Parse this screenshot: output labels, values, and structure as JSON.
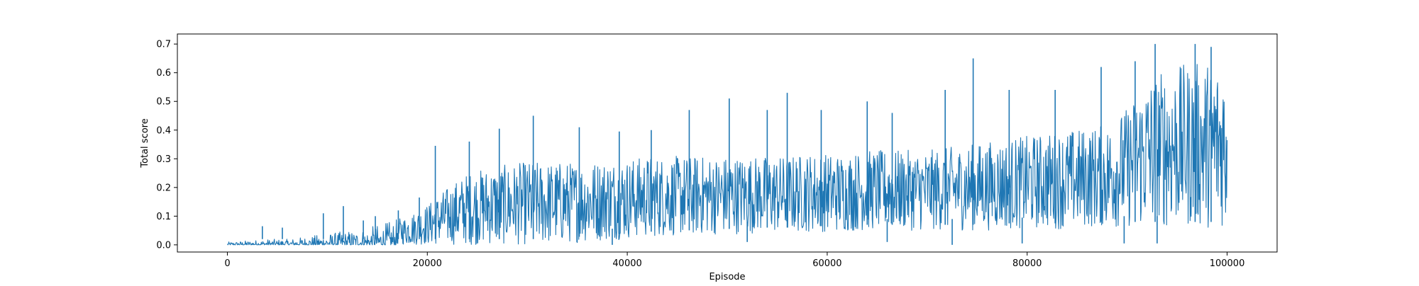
{
  "chart_data": {
    "type": "line",
    "title": "",
    "xlabel": "Episode",
    "ylabel": "Total score",
    "xlim": [
      -5000,
      105000
    ],
    "ylim": [
      -0.025,
      0.735
    ],
    "x_ticks": [
      0,
      20000,
      40000,
      60000,
      80000,
      100000
    ],
    "x_tick_labels": [
      "0",
      "20000",
      "40000",
      "60000",
      "80000",
      "100000"
    ],
    "y_ticks": [
      0.0,
      0.1,
      0.2,
      0.3,
      0.4,
      0.5,
      0.6,
      0.7
    ],
    "y_tick_labels": [
      "0.0",
      "0.1",
      "0.2",
      "0.3",
      "0.4",
      "0.5",
      "0.6",
      "0.7"
    ],
    "grid": false,
    "legend": "none",
    "series": [
      {
        "color": "#1f77b4",
        "episodes_total": 100000,
        "x": [
          0,
          2000,
          4000,
          6000,
          8000,
          10000,
          12000,
          14000,
          16000,
          18000,
          20000,
          22000,
          24000,
          26000,
          28000,
          30000,
          32000,
          34000,
          36000,
          38000,
          40000,
          42000,
          44000,
          46000,
          48000,
          50000,
          52000,
          54000,
          56000,
          58000,
          60000,
          62000,
          64000,
          66000,
          68000,
          70000,
          72000,
          74000,
          76000,
          78000,
          80000,
          82000,
          84000,
          86000,
          88000,
          90000,
          92000,
          94000,
          96000,
          98000,
          100000
        ],
        "upper_envelope": [
          0.01,
          0.015,
          0.02,
          0.02,
          0.03,
          0.04,
          0.05,
          0.06,
          0.08,
          0.1,
          0.14,
          0.2,
          0.25,
          0.27,
          0.28,
          0.29,
          0.29,
          0.29,
          0.29,
          0.3,
          0.3,
          0.31,
          0.31,
          0.31,
          0.31,
          0.31,
          0.31,
          0.31,
          0.31,
          0.32,
          0.32,
          0.32,
          0.33,
          0.33,
          0.33,
          0.33,
          0.34,
          0.35,
          0.36,
          0.37,
          0.38,
          0.39,
          0.4,
          0.41,
          0.42,
          0.48,
          0.58,
          0.62,
          0.63,
          0.64,
          0.64
        ],
        "lower_envelope": [
          0.0,
          0.0,
          0.0,
          0.0,
          0.0,
          0.0,
          0.0,
          0.0,
          0.0,
          0.0,
          0.0,
          0.0,
          0.0,
          0.0,
          0.0,
          0.0,
          0.0,
          0.005,
          0.01,
          0.015,
          0.02,
          0.025,
          0.03,
          0.03,
          0.035,
          0.035,
          0.04,
          0.04,
          0.04,
          0.045,
          0.045,
          0.045,
          0.05,
          0.05,
          0.05,
          0.05,
          0.05,
          0.05,
          0.05,
          0.055,
          0.055,
          0.055,
          0.055,
          0.06,
          0.06,
          0.06,
          0.06,
          0.06,
          0.06,
          0.06,
          0.06
        ],
        "spikes": [
          {
            "x": 3500,
            "y": 0.065
          },
          {
            "x": 5500,
            "y": 0.06
          },
          {
            "x": 9600,
            "y": 0.11
          },
          {
            "x": 11600,
            "y": 0.135
          },
          {
            "x": 13600,
            "y": 0.085
          },
          {
            "x": 14800,
            "y": 0.1
          },
          {
            "x": 17100,
            "y": 0.12
          },
          {
            "x": 19200,
            "y": 0.165
          },
          {
            "x": 20800,
            "y": 0.345
          },
          {
            "x": 24200,
            "y": 0.36
          },
          {
            "x": 27200,
            "y": 0.405
          },
          {
            "x": 30600,
            "y": 0.45
          },
          {
            "x": 35200,
            "y": 0.41
          },
          {
            "x": 39200,
            "y": 0.395
          },
          {
            "x": 42400,
            "y": 0.4
          },
          {
            "x": 46200,
            "y": 0.47
          },
          {
            "x": 50200,
            "y": 0.51
          },
          {
            "x": 54000,
            "y": 0.47
          },
          {
            "x": 56000,
            "y": 0.53
          },
          {
            "x": 59400,
            "y": 0.47
          },
          {
            "x": 64000,
            "y": 0.5
          },
          {
            "x": 66500,
            "y": 0.46
          },
          {
            "x": 71800,
            "y": 0.54
          },
          {
            "x": 74600,
            "y": 0.65
          },
          {
            "x": 78200,
            "y": 0.54
          },
          {
            "x": 82800,
            "y": 0.54
          },
          {
            "x": 87400,
            "y": 0.62
          },
          {
            "x": 90800,
            "y": 0.64
          },
          {
            "x": 92800,
            "y": 0.7
          },
          {
            "x": 96800,
            "y": 0.7
          },
          {
            "x": 98400,
            "y": 0.69
          }
        ],
        "dips": [
          {
            "x": 38500,
            "y": 0.0
          },
          {
            "x": 52000,
            "y": 0.01
          },
          {
            "x": 66000,
            "y": 0.01
          },
          {
            "x": 72500,
            "y": 0.0
          },
          {
            "x": 79500,
            "y": 0.005
          },
          {
            "x": 89700,
            "y": 0.005
          },
          {
            "x": 93000,
            "y": 0.005
          }
        ]
      }
    ]
  }
}
